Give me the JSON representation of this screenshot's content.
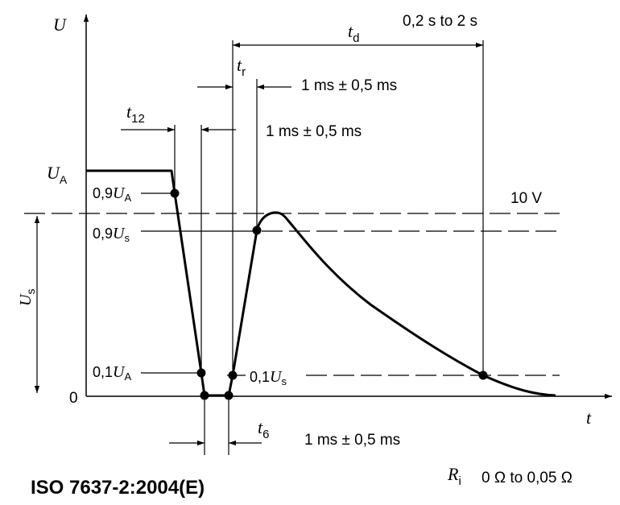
{
  "axes": {
    "y_axis_label": "U",
    "x_axis_label": "t",
    "origin_label": "0"
  },
  "levels": {
    "ua": {
      "symbol": "U",
      "sub": "A"
    },
    "ua_90": {
      "prefix": "0,9",
      "symbol": "U",
      "sub": "A"
    },
    "us_90": {
      "prefix": "0,9",
      "symbol": "U",
      "sub": "s"
    },
    "ua_10": {
      "prefix": "0,1",
      "symbol": "U",
      "sub": "A"
    },
    "us_10": {
      "prefix": "0,1",
      "symbol": "U",
      "sub": "s"
    },
    "us_span": {
      "symbol": "U",
      "sub": "s"
    },
    "ten_volt": "10 V"
  },
  "timings": {
    "td": {
      "symbol": "t",
      "sub": "d",
      "value": "0,2 s to 2 s"
    },
    "tr": {
      "symbol": "t",
      "sub": "r",
      "value": "1 ms ± 0,5 ms"
    },
    "t12": {
      "symbol": "t",
      "sub": "12",
      "value": "1 ms ± 0,5 ms"
    },
    "t6": {
      "symbol": "t",
      "sub": "6",
      "value": "1 ms ± 0,5 ms"
    }
  },
  "resistance": {
    "symbol": "R",
    "sub": "i",
    "value": "0 Ω to 0,05 Ω"
  },
  "standard": "ISO 7637-2:2004(E)"
}
